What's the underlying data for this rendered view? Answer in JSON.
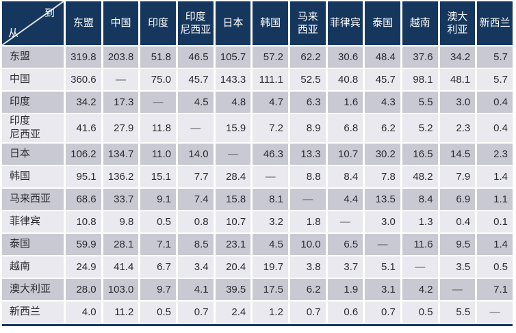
{
  "colors": {
    "header_bg": "#16375d",
    "header_text": "#ffffff",
    "row_dark": "#c9c9d3",
    "row_light": "#e9e9ef",
    "cell_text": "#2b2b30",
    "bottom_rule": "#16375d"
  },
  "chart_data": {
    "type": "table",
    "corner": {
      "to_label": "到",
      "from_label": "从"
    },
    "missing_marker": "—",
    "columns": [
      {
        "name": "东盟",
        "display": "东盟"
      },
      {
        "name": "中国",
        "display": "中国"
      },
      {
        "name": "印度",
        "display": "印度"
      },
      {
        "name": "印度尼西亚",
        "display": "印度\n尼西亚"
      },
      {
        "name": "日本",
        "display": "日本"
      },
      {
        "name": "韩国",
        "display": "韩国"
      },
      {
        "name": "马来西亚",
        "display": "马来\n西亚"
      },
      {
        "name": "菲律宾",
        "display": "菲律宾"
      },
      {
        "name": "泰国",
        "display": "泰国"
      },
      {
        "name": "越南",
        "display": "越南"
      },
      {
        "name": "澳大利亚",
        "display": "澳大\n利亚"
      },
      {
        "name": "新西兰",
        "display": "新西兰"
      }
    ],
    "rows": [
      {
        "label": "东盟",
        "display": "东盟",
        "values": [
          "319.8",
          "203.8",
          "51.8",
          "46.5",
          "105.7",
          "57.2",
          "62.2",
          "30.6",
          "48.4",
          "37.6",
          "34.2",
          "5.7"
        ]
      },
      {
        "label": "中国",
        "display": "中国",
        "values": [
          "360.6",
          "—",
          "75.0",
          "45.7",
          "143.3",
          "111.1",
          "52.5",
          "40.8",
          "45.7",
          "98.1",
          "48.1",
          "5.7"
        ]
      },
      {
        "label": "印度",
        "display": "印度",
        "values": [
          "34.2",
          "17.3",
          "—",
          "4.5",
          "4.8",
          "4.7",
          "6.3",
          "1.6",
          "4.3",
          "5.5",
          "3.0",
          "0.4"
        ]
      },
      {
        "label": "印度尼西亚",
        "display": "印度\n尼西亚",
        "values": [
          "41.6",
          "27.9",
          "11.8",
          "—",
          "15.9",
          "7.2",
          "8.9",
          "6.8",
          "6.2",
          "5.2",
          "2.3",
          "0.4"
        ]
      },
      {
        "label": "日本",
        "display": "日本",
        "values": [
          "106.2",
          "134.7",
          "11.0",
          "14.0",
          "—",
          "46.3",
          "13.3",
          "10.7",
          "30.2",
          "16.5",
          "14.5",
          "2.3"
        ]
      },
      {
        "label": "韩国",
        "display": "韩国",
        "values": [
          "95.1",
          "136.2",
          "15.1",
          "7.7",
          "28.4",
          "—",
          "8.8",
          "8.4",
          "7.8",
          "48.2",
          "7.9",
          "1.4"
        ]
      },
      {
        "label": "马来西亚",
        "display": "马来西亚",
        "values": [
          "68.6",
          "33.7",
          "9.1",
          "7.4",
          "15.8",
          "8.1",
          "—",
          "4.4",
          "13.5",
          "8.4",
          "6.9",
          "1.1"
        ]
      },
      {
        "label": "菲律宾",
        "display": "菲律宾",
        "values": [
          "10.8",
          "9.8",
          "0.5",
          "0.8",
          "10.7",
          "3.2",
          "1.8",
          "—",
          "3.0",
          "1.3",
          "0.4",
          "0.1"
        ]
      },
      {
        "label": "泰国",
        "display": "泰国",
        "values": [
          "59.9",
          "28.1",
          "7.1",
          "8.5",
          "23.1",
          "4.5",
          "10.0",
          "6.5",
          "—",
          "11.6",
          "9.5",
          "1.4"
        ]
      },
      {
        "label": "越南",
        "display": "越南",
        "values": [
          "24.9",
          "41.4",
          "6.7",
          "3.4",
          "20.4",
          "19.7",
          "3.8",
          "3.7",
          "5.1",
          "—",
          "3.5",
          "0.5"
        ]
      },
      {
        "label": "澳大利亚",
        "display": "澳大利亚",
        "values": [
          "28.0",
          "103.0",
          "9.7",
          "4.1",
          "39.5",
          "17.5",
          "6.2",
          "1.9",
          "3.1",
          "4.2",
          "—",
          "7.1"
        ]
      },
      {
        "label": "新西兰",
        "display": "新西兰",
        "values": [
          "4.0",
          "11.2",
          "0.5",
          "0.7",
          "2.4",
          "1.2",
          "0.7",
          "0.6",
          "0.7",
          "0.5",
          "5.5",
          "—"
        ]
      }
    ]
  }
}
